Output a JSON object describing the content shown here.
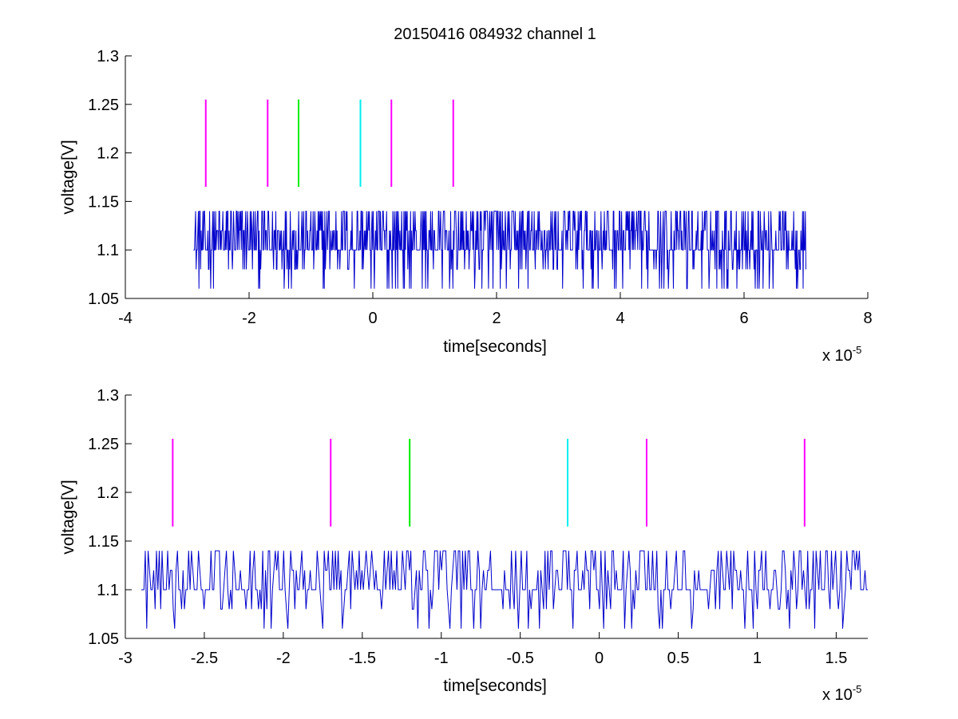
{
  "title": "20150416 084932 channel 1",
  "colors": {
    "trace": "#0000cc",
    "magenta": "#ff00ff",
    "green": "#00ee00",
    "cyan": "#00eeee",
    "axis": "#000000"
  },
  "chart_data": [
    {
      "type": "line",
      "xlabel": "time[seconds]",
      "ylabel": "voltage[V]",
      "x_multiplier": "x 10",
      "x_exponent": "-5",
      "xlim": [
        -4,
        8
      ],
      "ylim": [
        1.05,
        1.3
      ],
      "xticks": [
        -4,
        -2,
        0,
        2,
        4,
        6,
        8
      ],
      "xtick_labels": [
        "-4",
        "-2",
        "0",
        "2",
        "4",
        "6",
        "8"
      ],
      "yticks": [
        1.05,
        1.1,
        1.15,
        1.2,
        1.25,
        1.3
      ],
      "ytick_labels": [
        "1.05",
        "1.1",
        "1.15",
        "1.2",
        "1.25",
        "1.3"
      ],
      "grid": false,
      "series": [
        {
          "values_levels": [
            1.06,
            1.08,
            1.1,
            1.12,
            1.14
          ],
          "x_range": [
            -2.9,
            7.0
          ],
          "baseline": 1.1,
          "color": "#0000cc"
        }
      ],
      "markers": [
        {
          "x": -2.7,
          "y_range": [
            1.165,
            1.255
          ],
          "color": "#ff00ff"
        },
        {
          "x": -1.7,
          "y_range": [
            1.165,
            1.255
          ],
          "color": "#ff00ff"
        },
        {
          "x": -1.2,
          "y_range": [
            1.165,
            1.255
          ],
          "color": "#00ee00"
        },
        {
          "x": -0.2,
          "y_range": [
            1.165,
            1.255
          ],
          "color": "#00eeee"
        },
        {
          "x": 0.3,
          "y_range": [
            1.165,
            1.255
          ],
          "color": "#ff00ff"
        },
        {
          "x": 1.3,
          "y_range": [
            1.165,
            1.255
          ],
          "color": "#ff00ff"
        }
      ]
    },
    {
      "type": "line",
      "xlabel": "time[seconds]",
      "ylabel": "voltage[V]",
      "x_multiplier": "x 10",
      "x_exponent": "-5",
      "xlim": [
        -3,
        1.7
      ],
      "ylim": [
        1.05,
        1.3
      ],
      "xticks": [
        -3,
        -2.5,
        -2,
        -1.5,
        -1,
        -0.5,
        0,
        0.5,
        1,
        1.5
      ],
      "xtick_labels": [
        "-3",
        "-2.5",
        "-2",
        "-1.5",
        "-1",
        "-0.5",
        "0",
        "0.5",
        "1",
        "1.5"
      ],
      "yticks": [
        1.05,
        1.1,
        1.15,
        1.2,
        1.25,
        1.3
      ],
      "ytick_labels": [
        "1.05",
        "1.1",
        "1.15",
        "1.2",
        "1.25",
        "1.3"
      ],
      "grid": false,
      "series": [
        {
          "values_levels": [
            1.06,
            1.08,
            1.1,
            1.12,
            1.14
          ],
          "x_range": [
            -2.9,
            1.7
          ],
          "baseline": 1.1,
          "color": "#0000cc"
        }
      ],
      "markers": [
        {
          "x": -2.7,
          "y_range": [
            1.165,
            1.255
          ],
          "color": "#ff00ff"
        },
        {
          "x": -1.7,
          "y_range": [
            1.165,
            1.255
          ],
          "color": "#ff00ff"
        },
        {
          "x": -1.2,
          "y_range": [
            1.165,
            1.255
          ],
          "color": "#00ee00"
        },
        {
          "x": -0.2,
          "y_range": [
            1.165,
            1.255
          ],
          "color": "#00eeee"
        },
        {
          "x": 0.3,
          "y_range": [
            1.165,
            1.255
          ],
          "color": "#ff00ff"
        },
        {
          "x": 1.3,
          "y_range": [
            1.165,
            1.255
          ],
          "color": "#ff00ff"
        }
      ]
    }
  ]
}
